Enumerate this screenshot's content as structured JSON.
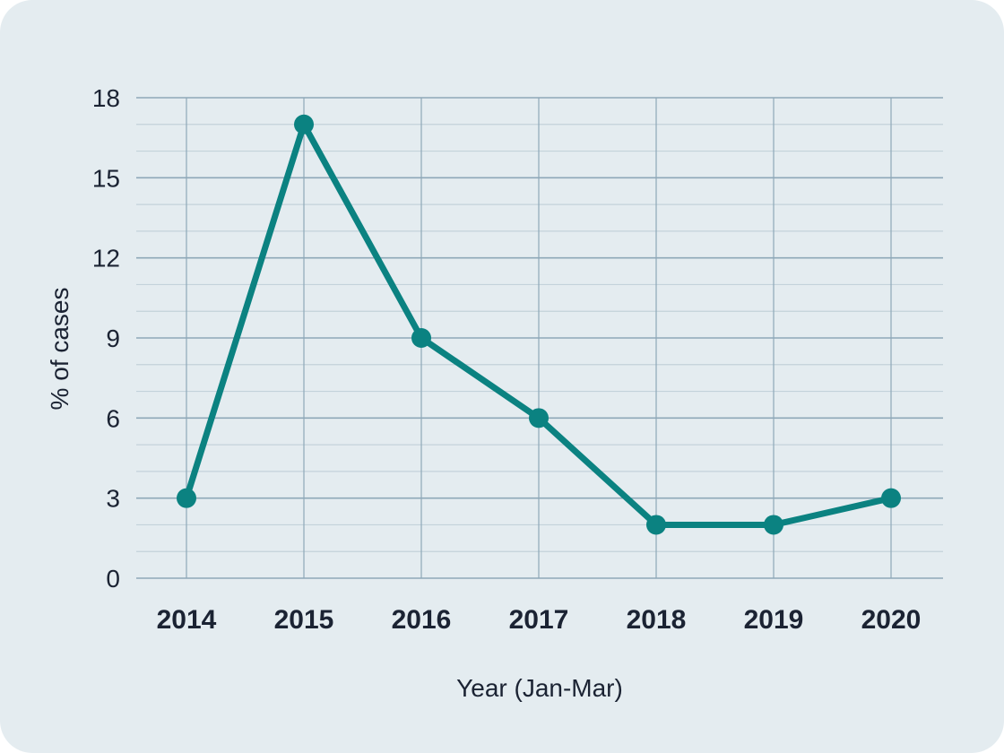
{
  "colors": {
    "background": "#e4ecf0",
    "line": "#0b8281",
    "grid_major": "#8ea8b8",
    "grid_minor": "#c3d2da",
    "text": "#1b2333"
  },
  "chart_data": {
    "type": "line",
    "title": "",
    "xlabel": "Year (Jan-Mar)",
    "ylabel": "% of cases",
    "categories": [
      "2014",
      "2015",
      "2016",
      "2017",
      "2018",
      "2019",
      "2020"
    ],
    "values": [
      3,
      17,
      9,
      6,
      2,
      2,
      3
    ],
    "ylim": [
      0,
      18
    ],
    "yticks": [
      0,
      3,
      6,
      9,
      12,
      15,
      18
    ],
    "grid": true,
    "legend": "none"
  }
}
